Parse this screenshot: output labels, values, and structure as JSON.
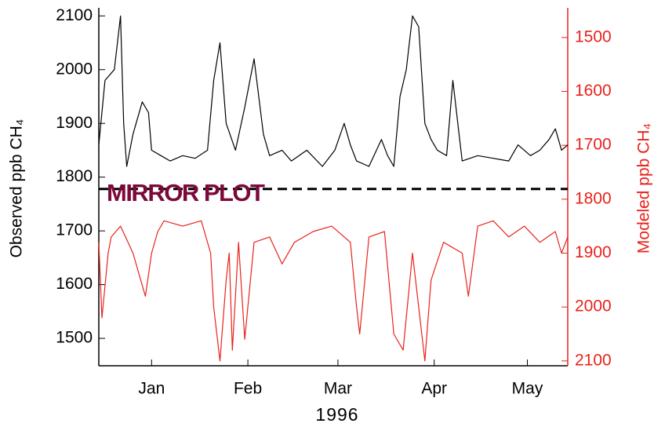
{
  "chart_data": {
    "type": "line",
    "xlabel": "1996",
    "ylabel": "Observed ppb CH₄",
    "y2label": "Modeled ppb CH₄",
    "annotation": "MIRROR PLOT",
    "annotation_color": "#7b0a3a",
    "reference_line": 1778,
    "xlim": [
      -17,
      134
    ],
    "xticks": [
      {
        "value": 0,
        "label": "Jan"
      },
      {
        "value": 31,
        "label": "Feb"
      },
      {
        "value": 60,
        "label": "Mar"
      },
      {
        "value": 91,
        "label": "Apr"
      },
      {
        "value": 121,
        "label": "May"
      }
    ],
    "ylim": [
      1449,
      2115
    ],
    "yticks": [
      1500,
      1600,
      1700,
      1800,
      1900,
      2000,
      2100
    ],
    "y2lim": [
      2109,
      1445
    ],
    "y2ticks": [
      1500,
      1600,
      1700,
      1800,
      1900,
      2000,
      2100
    ],
    "y2color": "#e8231c",
    "series": [
      {
        "name": "Observed",
        "color": "#000000",
        "axis": "y",
        "x": [
          -17,
          -15,
          -12,
          -10,
          -9,
          -8,
          -6,
          -3,
          -1,
          0,
          3,
          6,
          10,
          14,
          18,
          20,
          22,
          24,
          27,
          30,
          33,
          36,
          38,
          42,
          45,
          50,
          55,
          59,
          62,
          64,
          66,
          70,
          74,
          76,
          78,
          80,
          82,
          84,
          86,
          88,
          90,
          92,
          95,
          97,
          99,
          100,
          105,
          110,
          115,
          118,
          122,
          125,
          128,
          130,
          132,
          134
        ],
        "values": [
          1860,
          1980,
          2000,
          2100,
          1900,
          1820,
          1880,
          1940,
          1920,
          1850,
          1840,
          1830,
          1840,
          1835,
          1850,
          1980,
          2050,
          1900,
          1850,
          1930,
          2020,
          1880,
          1840,
          1850,
          1830,
          1850,
          1820,
          1850,
          1900,
          1860,
          1830,
          1820,
          1870,
          1840,
          1820,
          1950,
          2000,
          2100,
          2080,
          1900,
          1870,
          1850,
          1840,
          1980,
          1880,
          1830,
          1840,
          1835,
          1830,
          1860,
          1840,
          1850,
          1870,
          1890,
          1850,
          1860
        ]
      },
      {
        "name": "Modeled",
        "color": "#e8231c",
        "axis": "y2",
        "x": [
          -17,
          -16,
          -14,
          -13,
          -10,
          -6,
          -2,
          0,
          2,
          4,
          10,
          16,
          19,
          20,
          22,
          24,
          25,
          26,
          28,
          30,
          33,
          38,
          42,
          46,
          52,
          58,
          64,
          66,
          67,
          70,
          75,
          78,
          81,
          84,
          86,
          88,
          90,
          94,
          100,
          102,
          105,
          110,
          115,
          120,
          125,
          130,
          132,
          134
        ],
        "values": [
          1880,
          2020,
          1900,
          1870,
          1850,
          1900,
          1980,
          1900,
          1860,
          1840,
          1850,
          1840,
          1900,
          2000,
          2100,
          1950,
          1900,
          2080,
          1880,
          2060,
          1880,
          1870,
          1920,
          1880,
          1860,
          1850,
          1880,
          2000,
          2050,
          1870,
          1860,
          2050,
          2080,
          1900,
          2000,
          2100,
          1950,
          1880,
          1900,
          1980,
          1850,
          1840,
          1870,
          1850,
          1880,
          1860,
          1900,
          1870
        ]
      }
    ]
  }
}
